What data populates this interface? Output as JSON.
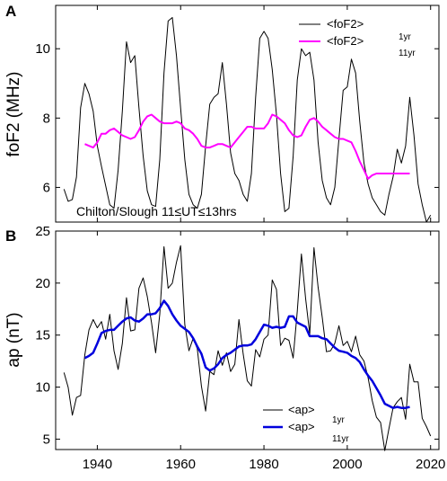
{
  "chart_data": [
    {
      "type": "line",
      "panel_label": "A",
      "ylabel": "foF2  (MHz)",
      "annotation": "Chilton/Slough 11≤UT≤13hrs",
      "xlim": [
        1930,
        2022
      ],
      "ylim": [
        5,
        11.25
      ],
      "yticks": [
        6,
        8,
        10
      ],
      "xticks": [
        1940,
        1960,
        1980,
        2000,
        2020
      ],
      "series": [
        {
          "name": "<foF2>",
          "legend_sub": "1yr",
          "color": "#000000",
          "x": [
            1932,
            1933,
            1934,
            1935,
            1936,
            1937,
            1938,
            1939,
            1940,
            1941,
            1942,
            1943,
            1944,
            1945,
            1946,
            1947,
            1948,
            1949,
            1950,
            1951,
            1952,
            1953,
            1954,
            1955,
            1956,
            1957,
            1958,
            1959,
            1960,
            1961,
            1962,
            1963,
            1964,
            1965,
            1966,
            1967,
            1968,
            1969,
            1970,
            1971,
            1972,
            1973,
            1974,
            1975,
            1976,
            1977,
            1978,
            1979,
            1980,
            1981,
            1982,
            1983,
            1984,
            1985,
            1986,
            1987,
            1988,
            1989,
            1990,
            1991,
            1992,
            1993,
            1994,
            1995,
            1996,
            1997,
            1998,
            1999,
            2000,
            2001,
            2002,
            2003,
            2004,
            2005,
            2006,
            2007,
            2008,
            2009,
            2010,
            2011,
            2012,
            2013,
            2014,
            2015,
            2016,
            2017,
            2018,
            2019,
            2020
          ],
          "values": [
            5.95,
            5.6,
            5.65,
            6.3,
            8.3,
            9,
            8.7,
            8.2,
            7.2,
            6.6,
            6.05,
            5.5,
            5.4,
            6.5,
            8.2,
            10.2,
            9.6,
            9.8,
            8.3,
            6.9,
            5.9,
            5.5,
            5.45,
            6.8,
            9.3,
            10.8,
            10.9,
            9.8,
            8.3,
            6.8,
            5.8,
            5.5,
            5.4,
            5.8,
            7.2,
            8.4,
            8.6,
            8.7,
            9.6,
            8.4,
            7,
            6.4,
            6.2,
            5.8,
            5.6,
            6.4,
            8.6,
            10.3,
            10.5,
            10.3,
            9.4,
            8.1,
            6.4,
            5.3,
            5.4,
            6.9,
            9.1,
            10,
            9.8,
            9.9,
            9.1,
            7.3,
            6.2,
            5.7,
            5.5,
            6,
            7.4,
            8.8,
            8.9,
            9.7,
            9.3,
            7.9,
            6.7,
            6.1,
            5.7,
            5.5,
            5.3,
            5.2,
            5.8,
            6.3,
            7.1,
            6.7,
            7.2,
            8.6,
            7.5,
            6.1,
            5.5,
            5,
            5.2
          ]
        },
        {
          "name": "<foF2>",
          "legend_sub": "11yr",
          "color": "#ff00ff",
          "x": [
            1937,
            1938,
            1939,
            1940,
            1941,
            1942,
            1943,
            1944,
            1945,
            1946,
            1947,
            1948,
            1949,
            1950,
            1951,
            1952,
            1953,
            1954,
            1955,
            1956,
            1957,
            1958,
            1959,
            1960,
            1961,
            1962,
            1963,
            1964,
            1965,
            1966,
            1967,
            1968,
            1969,
            1970,
            1971,
            1972,
            1973,
            1974,
            1975,
            1976,
            1977,
            1978,
            1979,
            1980,
            1981,
            1982,
            1983,
            1984,
            1985,
            1986,
            1987,
            1988,
            1989,
            1990,
            1991,
            1992,
            1993,
            1994,
            1995,
            1996,
            1997,
            1998,
            1999,
            2000,
            2001,
            2002,
            2003,
            2004,
            2005,
            2006,
            2007,
            2008,
            2009,
            2010,
            2011,
            2012,
            2013,
            2014,
            2015
          ],
          "values": [
            7.25,
            7.2,
            7.15,
            7.3,
            7.55,
            7.55,
            7.65,
            7.7,
            7.6,
            7.5,
            7.45,
            7.4,
            7.45,
            7.65,
            7.9,
            8.05,
            8.1,
            8,
            7.9,
            7.85,
            7.85,
            7.85,
            7.9,
            7.85,
            7.7,
            7.65,
            7.55,
            7.4,
            7.2,
            7.15,
            7.15,
            7.2,
            7.25,
            7.25,
            7.2,
            7.15,
            7.3,
            7.45,
            7.6,
            7.75,
            7.75,
            7.7,
            7.7,
            7.7,
            7.85,
            8.1,
            8.05,
            7.95,
            7.85,
            7.65,
            7.5,
            7.45,
            7.5,
            7.75,
            7.95,
            8,
            7.9,
            7.75,
            7.65,
            7.55,
            7.45,
            7.4,
            7.4,
            7.35,
            7.3,
            7.05,
            6.75,
            6.5,
            6.25,
            6.35,
            6.4,
            6.4,
            6.4,
            6.4,
            6.4,
            6.4,
            6.4,
            6.4,
            6.4
          ]
        }
      ]
    },
    {
      "type": "line",
      "panel_label": "B",
      "ylabel": "ap  (nT)",
      "xlim": [
        1930,
        2022
      ],
      "ylim": [
        4,
        25
      ],
      "yticks": [
        5,
        10,
        15,
        20,
        25
      ],
      "xticks": [
        1940,
        1960,
        1980,
        2000,
        2020
      ],
      "series": [
        {
          "name": "<ap>",
          "legend_sub": "1yr",
          "color": "#000000",
          "x": [
            1932,
            1933,
            1934,
            1935,
            1936,
            1937,
            1938,
            1939,
            1940,
            1941,
            1942,
            1943,
            1944,
            1945,
            1946,
            1947,
            1948,
            1949,
            1950,
            1951,
            1952,
            1953,
            1954,
            1955,
            1956,
            1957,
            1958,
            1959,
            1960,
            1961,
            1962,
            1963,
            1964,
            1965,
            1966,
            1967,
            1968,
            1969,
            1970,
            1971,
            1972,
            1973,
            1974,
            1975,
            1976,
            1977,
            1978,
            1979,
            1980,
            1981,
            1982,
            1983,
            1984,
            1985,
            1986,
            1987,
            1988,
            1989,
            1990,
            1991,
            1992,
            1993,
            1994,
            1995,
            1996,
            1997,
            1998,
            1999,
            2000,
            2001,
            2002,
            2003,
            2004,
            2005,
            2006,
            2007,
            2008,
            2009,
            2010,
            2011,
            2012,
            2013,
            2014,
            2015,
            2016,
            2017,
            2018,
            2019,
            2020
          ],
          "values": [
            11.4,
            10,
            7.3,
            9,
            9.2,
            13.1,
            15.5,
            16.5,
            15.7,
            16.3,
            14.6,
            17,
            13.5,
            11.7,
            14.2,
            18.6,
            15.4,
            15.5,
            19.5,
            20.5,
            18.7,
            16.2,
            13.3,
            17,
            23.5,
            19.5,
            20,
            22,
            23.6,
            16,
            13.5,
            14.7,
            13.7,
            10.1,
            7.7,
            11.5,
            11.2,
            13.5,
            12.1,
            13.3,
            11.5,
            12.2,
            16.5,
            13.2,
            10.6,
            10.1,
            13.6,
            12.9,
            14.6,
            15,
            20.3,
            19.4,
            14,
            14.7,
            14.5,
            12.8,
            17.3,
            22.8,
            18.5,
            15.1,
            23.4,
            19.6,
            16.7,
            13.4,
            13.5,
            14.2,
            15.9,
            14,
            14.4,
            13.4,
            14.9,
            13.1,
            12.5,
            10.9,
            8.7,
            7.1,
            6.6,
            3.9,
            6,
            8,
            8.6,
            9,
            6.9,
            12.2,
            10.5,
            10.5,
            7,
            6.2,
            5.3
          ]
        },
        {
          "name": "<ap>",
          "legend_sub": "11yr",
          "color": "#0000dd",
          "x": [
            1937,
            1938,
            1939,
            1940,
            1941,
            1942,
            1943,
            1944,
            1945,
            1946,
            1947,
            1948,
            1949,
            1950,
            1951,
            1952,
            1953,
            1954,
            1955,
            1956,
            1957,
            1958,
            1959,
            1960,
            1961,
            1962,
            1963,
            1964,
            1965,
            1966,
            1967,
            1968,
            1969,
            1970,
            1971,
            1972,
            1973,
            1974,
            1975,
            1976,
            1977,
            1978,
            1979,
            1980,
            1981,
            1982,
            1983,
            1984,
            1985,
            1986,
            1987,
            1988,
            1989,
            1990,
            1991,
            1992,
            1993,
            1994,
            1995,
            1996,
            1997,
            1998,
            1999,
            2000,
            2001,
            2002,
            2003,
            2004,
            2005,
            2006,
            2007,
            2008,
            2009,
            2010,
            2011,
            2012,
            2013,
            2014,
            2015
          ],
          "values": [
            12.8,
            13,
            13.3,
            14.2,
            15.2,
            15.4,
            15.5,
            15.5,
            15.9,
            16.3,
            16.6,
            16.7,
            16.4,
            16.3,
            16.6,
            17,
            17,
            17.1,
            17.6,
            18.3,
            17.8,
            17,
            16.4,
            15.9,
            15.6,
            15.3,
            14.7,
            13.9,
            13.2,
            11.9,
            11.6,
            11.8,
            12.2,
            12.8,
            13.1,
            13.3,
            13.6,
            13.9,
            14,
            14,
            14.1,
            14.6,
            15.3,
            16,
            15.9,
            15.7,
            15.8,
            15.7,
            15.8,
            16.8,
            16.8,
            16.2,
            16,
            15.8,
            14.9,
            14.9,
            14.9,
            14.7,
            14.6,
            14.2,
            13.8,
            13.5,
            13.4,
            13.3,
            13,
            12.8,
            12.4,
            11.7,
            11.1,
            10.6,
            9.9,
            9.2,
            8.4,
            8.2,
            8,
            8.1,
            8,
            8,
            8.1
          ]
        }
      ]
    }
  ]
}
